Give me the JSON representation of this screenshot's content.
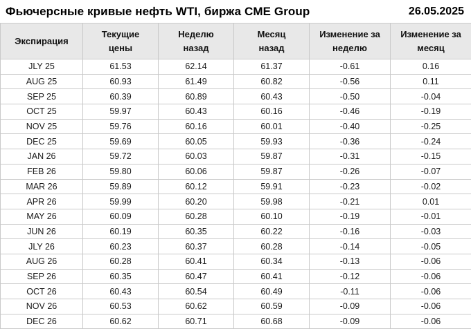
{
  "header": {
    "title": "Фьючерсные кривые нефть WTI, биржа CME Group",
    "date": "26.05.2025"
  },
  "table": {
    "columns": [
      "Экспирация",
      "Текущие\nцены",
      "Неделю\nназад",
      "Месяц\nназад",
      "Изменение за\nнеделю",
      "Изменение за\nмесяц"
    ],
    "rows": [
      {
        "expiration": "JLY 25",
        "current": "61.53",
        "week_ago": "62.14",
        "month_ago": "61.37",
        "week_change": "-0.61",
        "month_change": "0.16"
      },
      {
        "expiration": "AUG 25",
        "current": "60.93",
        "week_ago": "61.49",
        "month_ago": "60.82",
        "week_change": "-0.56",
        "month_change": "0.11"
      },
      {
        "expiration": "SEP 25",
        "current": "60.39",
        "week_ago": "60.89",
        "month_ago": "60.43",
        "week_change": "-0.50",
        "month_change": "-0.04"
      },
      {
        "expiration": "OCT 25",
        "current": "59.97",
        "week_ago": "60.43",
        "month_ago": "60.16",
        "week_change": "-0.46",
        "month_change": "-0.19"
      },
      {
        "expiration": "NOV 25",
        "current": "59.76",
        "week_ago": "60.16",
        "month_ago": "60.01",
        "week_change": "-0.40",
        "month_change": "-0.25"
      },
      {
        "expiration": "DEC 25",
        "current": "59.69",
        "week_ago": "60.05",
        "month_ago": "59.93",
        "week_change": "-0.36",
        "month_change": "-0.24"
      },
      {
        "expiration": "JAN 26",
        "current": "59.72",
        "week_ago": "60.03",
        "month_ago": "59.87",
        "week_change": "-0.31",
        "month_change": "-0.15"
      },
      {
        "expiration": "FEB 26",
        "current": "59.80",
        "week_ago": "60.06",
        "month_ago": "59.87",
        "week_change": "-0.26",
        "month_change": "-0.07"
      },
      {
        "expiration": "MAR 26",
        "current": "59.89",
        "week_ago": "60.12",
        "month_ago": "59.91",
        "week_change": "-0.23",
        "month_change": "-0.02"
      },
      {
        "expiration": "APR 26",
        "current": "59.99",
        "week_ago": "60.20",
        "month_ago": "59.98",
        "week_change": "-0.21",
        "month_change": "0.01"
      },
      {
        "expiration": "MAY 26",
        "current": "60.09",
        "week_ago": "60.28",
        "month_ago": "60.10",
        "week_change": "-0.19",
        "month_change": "-0.01"
      },
      {
        "expiration": "JUN 26",
        "current": "60.19",
        "week_ago": "60.35",
        "month_ago": "60.22",
        "week_change": "-0.16",
        "month_change": "-0.03"
      },
      {
        "expiration": "JLY 26",
        "current": "60.23",
        "week_ago": "60.37",
        "month_ago": "60.28",
        "week_change": "-0.14",
        "month_change": "-0.05"
      },
      {
        "expiration": "AUG 26",
        "current": "60.28",
        "week_ago": "60.41",
        "month_ago": "60.34",
        "week_change": "-0.13",
        "month_change": "-0.06"
      },
      {
        "expiration": "SEP 26",
        "current": "60.35",
        "week_ago": "60.47",
        "month_ago": "60.41",
        "week_change": "-0.12",
        "month_change": "-0.06"
      },
      {
        "expiration": "OCT 26",
        "current": "60.43",
        "week_ago": "60.54",
        "month_ago": "60.49",
        "week_change": "-0.11",
        "month_change": "-0.06"
      },
      {
        "expiration": "NOV 26",
        "current": "60.53",
        "week_ago": "60.62",
        "month_ago": "60.59",
        "week_change": "-0.09",
        "month_change": "-0.06"
      },
      {
        "expiration": "DEC 26",
        "current": "60.62",
        "week_ago": "60.71",
        "month_ago": "60.68",
        "week_change": "-0.09",
        "month_change": "-0.06"
      }
    ]
  },
  "colors": {
    "header_bg": "#e8e8e8",
    "border": "#c9c9c9",
    "negative": "#cc1414",
    "positive": "#1a7f1a",
    "text": "#1a1a1a"
  },
  "chart_data": {
    "type": "table",
    "title": "Фьючерсные кривые нефть WTI, биржа CME Group",
    "date": "26.05.2025",
    "columns": [
      "Экспирация",
      "Текущие цены",
      "Неделю назад",
      "Месяц назад",
      "Изменение за неделю",
      "Изменение за месяц"
    ],
    "categories": [
      "JLY 25",
      "AUG 25",
      "SEP 25",
      "OCT 25",
      "NOV 25",
      "DEC 25",
      "JAN 26",
      "FEB 26",
      "MAR 26",
      "APR 26",
      "MAY 26",
      "JUN 26",
      "JLY 26",
      "AUG 26",
      "SEP 26",
      "OCT 26",
      "NOV 26",
      "DEC 26"
    ],
    "series": [
      {
        "name": "Текущие цены",
        "values": [
          61.53,
          60.93,
          60.39,
          59.97,
          59.76,
          59.69,
          59.72,
          59.8,
          59.89,
          59.99,
          60.09,
          60.19,
          60.23,
          60.28,
          60.35,
          60.43,
          60.53,
          60.62
        ]
      },
      {
        "name": "Неделю назад",
        "values": [
          62.14,
          61.49,
          60.89,
          60.43,
          60.16,
          60.05,
          60.03,
          60.06,
          60.12,
          60.2,
          60.28,
          60.35,
          60.37,
          60.41,
          60.47,
          60.54,
          60.62,
          60.71
        ]
      },
      {
        "name": "Месяц назад",
        "values": [
          61.37,
          60.82,
          60.43,
          60.16,
          60.01,
          59.93,
          59.87,
          59.87,
          59.91,
          59.98,
          60.1,
          60.22,
          60.28,
          60.34,
          60.41,
          60.49,
          60.59,
          60.68
        ]
      },
      {
        "name": "Изменение за неделю",
        "values": [
          -0.61,
          -0.56,
          -0.5,
          -0.46,
          -0.4,
          -0.36,
          -0.31,
          -0.26,
          -0.23,
          -0.21,
          -0.19,
          -0.16,
          -0.14,
          -0.13,
          -0.12,
          -0.11,
          -0.09,
          -0.09
        ]
      },
      {
        "name": "Изменение за месяц",
        "values": [
          0.16,
          0.11,
          -0.04,
          -0.19,
          -0.25,
          -0.24,
          -0.15,
          -0.07,
          -0.02,
          0.01,
          -0.01,
          -0.03,
          -0.05,
          -0.06,
          -0.06,
          -0.06,
          -0.06,
          -0.06
        ]
      }
    ]
  }
}
